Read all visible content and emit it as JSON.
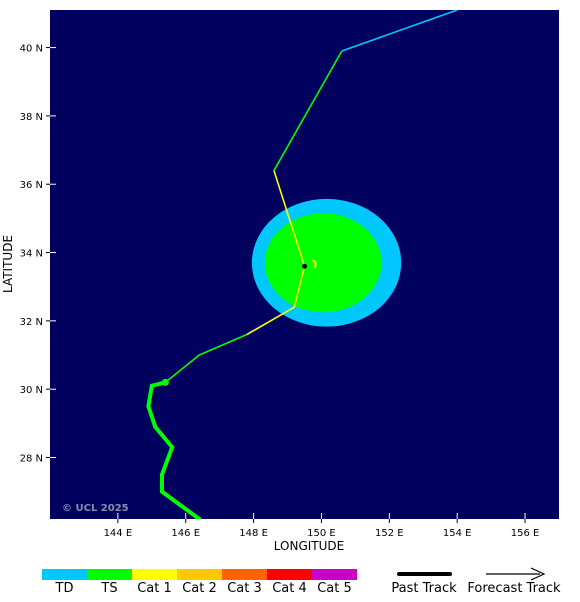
{
  "credit": "© UCL 2025",
  "axes": {
    "xlabel": "LONGITUDE",
    "ylabel": "LATITUDE",
    "x_ticks": [
      {
        "value": 144,
        "label": "144 E"
      },
      {
        "value": 146,
        "label": "146 E"
      },
      {
        "value": 148,
        "label": "148 E"
      },
      {
        "value": 150,
        "label": "150 E"
      },
      {
        "value": 152,
        "label": "152 E"
      },
      {
        "value": 154,
        "label": "154 E"
      },
      {
        "value": 156,
        "label": "156 E"
      }
    ],
    "y_ticks": [
      {
        "value": 28,
        "label": "28 N"
      },
      {
        "value": 30,
        "label": "30 N"
      },
      {
        "value": 32,
        "label": "32 N"
      },
      {
        "value": 34,
        "label": "34 N"
      },
      {
        "value": 36,
        "label": "36 N"
      },
      {
        "value": 38,
        "label": "38 N"
      },
      {
        "value": 40,
        "label": "40 N"
      }
    ],
    "lon_range": [
      142.0,
      157.0
    ],
    "lat_range": [
      26.2,
      41.1
    ]
  },
  "colors": {
    "background": "#00005f",
    "TD": "#00c8ff",
    "TS": "#00ff00",
    "Cat 1": "#ffff00",
    "Cat 2": "#ffc800",
    "Cat 3": "#ff6400",
    "Cat 4": "#ff0000",
    "Cat 5": "#c800c8"
  },
  "past_track": [
    {
      "lon": 146.4,
      "lat": 26.2,
      "cat": "TS"
    },
    {
      "lon": 145.3,
      "lat": 27.0,
      "cat": "TS"
    },
    {
      "lon": 145.3,
      "lat": 27.5,
      "cat": "TS"
    },
    {
      "lon": 145.6,
      "lat": 28.3,
      "cat": "TS"
    },
    {
      "lon": 145.1,
      "lat": 28.9,
      "cat": "TS"
    },
    {
      "lon": 144.9,
      "lat": 29.5,
      "cat": "TS"
    },
    {
      "lon": 145.0,
      "lat": 30.1,
      "cat": "TS"
    },
    {
      "lon": 145.4,
      "lat": 30.2,
      "cat": "TS"
    }
  ],
  "forecast_track": [
    {
      "lon": 145.4,
      "lat": 30.2,
      "cat": "TS"
    },
    {
      "lon": 146.4,
      "lat": 31.0,
      "cat": "TS"
    },
    {
      "lon": 147.8,
      "lat": 31.6,
      "cat": "Cat 1"
    },
    {
      "lon": 149.2,
      "lat": 32.4,
      "cat": "Cat 1"
    },
    {
      "lon": 149.5,
      "lat": 33.6,
      "cat": "Cat 1"
    },
    {
      "lon": 148.6,
      "lat": 36.4,
      "cat": "TS"
    },
    {
      "lon": 150.6,
      "lat": 39.9,
      "cat": "TD"
    },
    {
      "lon": 154.0,
      "lat": 41.1,
      "cat": "TD"
    }
  ],
  "current_position": {
    "lon": 149.5,
    "lat": 33.6
  },
  "wind_fields": [
    {
      "name": "TD",
      "center_lon": 150.15,
      "center_lat": 33.7,
      "radius_lon": 2.2,
      "radius_lat": 1.87
    },
    {
      "name": "TS",
      "center_lon": 150.05,
      "center_lat": 33.7,
      "radius_lon": 1.72,
      "radius_lat": 1.45
    }
  ],
  "legend": {
    "categories": [
      "TD",
      "TS",
      "Cat 1",
      "Cat 2",
      "Cat 3",
      "Cat 4",
      "Cat 5"
    ],
    "past_track_label": "Past Track",
    "forecast_track_label": "Forecast Track"
  }
}
